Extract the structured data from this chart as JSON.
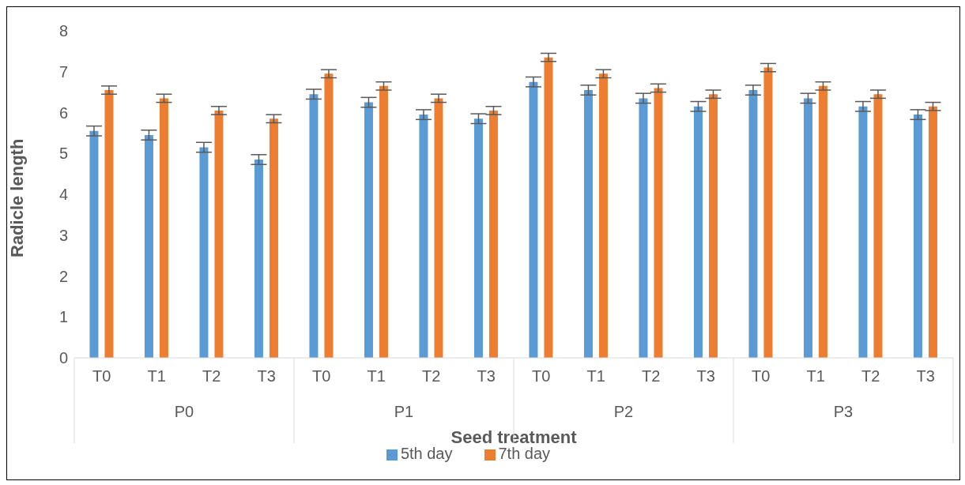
{
  "chart_data": {
    "type": "bar",
    "xlabel": "Seed treatment",
    "ylabel": "Radicle length",
    "categories": [
      "T0",
      "T1",
      "T2",
      "T3",
      "T0",
      "T1",
      "T2",
      "T3",
      "T0",
      "T1",
      "T2",
      "T3",
      "T0",
      "T1",
      "T2",
      "T3"
    ],
    "annotations": [
      "P0",
      "P1",
      "P2",
      "P3"
    ],
    "series": [
      {
        "name": "5th day",
        "color": "#5b9bd5",
        "values": [
          5.55,
          5.45,
          5.15,
          4.85,
          6.45,
          6.25,
          5.95,
          5.85,
          6.75,
          6.55,
          6.35,
          6.15,
          6.55,
          6.35,
          6.15,
          5.95
        ],
        "errors": [
          0.12,
          0.12,
          0.12,
          0.12,
          0.12,
          0.12,
          0.12,
          0.12,
          0.12,
          0.12,
          0.12,
          0.12,
          0.12,
          0.12,
          0.12,
          0.12
        ]
      },
      {
        "name": "7th day",
        "color": "#ed7d31",
        "values": [
          6.55,
          6.35,
          6.05,
          5.85,
          6.95,
          6.65,
          6.35,
          6.05,
          7.35,
          6.95,
          6.6,
          6.45,
          7.1,
          6.65,
          6.45,
          6.15
        ],
        "errors": [
          0.1,
          0.1,
          0.1,
          0.1,
          0.1,
          0.1,
          0.1,
          0.1,
          0.1,
          0.1,
          0.1,
          0.1,
          0.1,
          0.1,
          0.1,
          0.1
        ]
      }
    ],
    "ylim": [
      0,
      8
    ],
    "yticks": [
      0,
      1,
      2,
      3,
      4,
      5,
      6,
      7,
      8
    ],
    "grid": false,
    "legend": "bottom"
  }
}
